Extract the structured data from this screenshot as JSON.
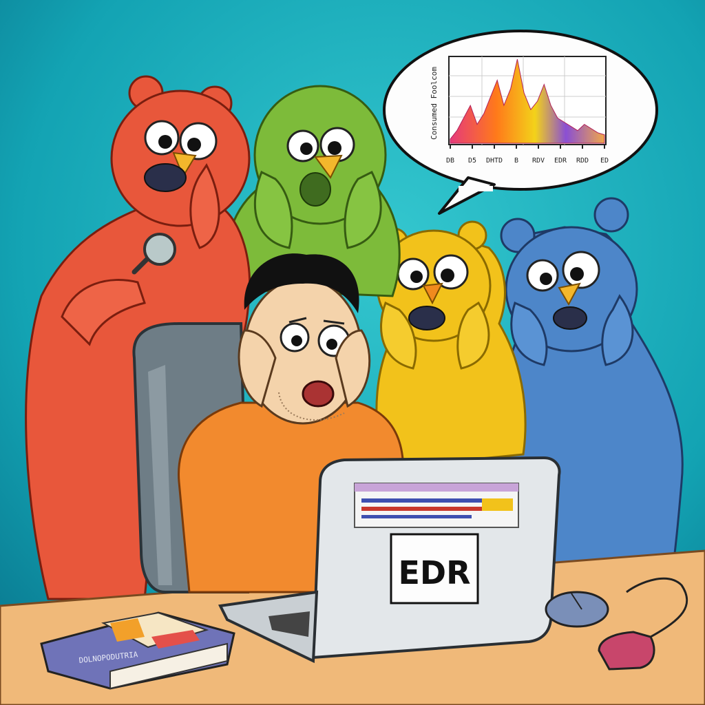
{
  "laptop": {
    "screen_label": "EDR"
  },
  "speech_bubble": {
    "chart_ylabel": "Consumed  Foolcom",
    "chart_ticks": [
      "DB",
      "D5",
      "DHTD",
      "B",
      "RDV",
      "EDR",
      "RDD",
      "ED"
    ]
  },
  "book": {
    "spine_text": "DOLNOPODUTRIA"
  },
  "colors": {
    "background": "#1aa9b8",
    "red_bear": "#e8573b",
    "green_creature": "#7dbb3a",
    "yellow_bear": "#f2c21b",
    "blue_bear": "#4d86c9",
    "shirt": "#f28a2e",
    "desk": "#f0b979"
  },
  "chart_data": {
    "type": "area",
    "series": [
      {
        "values": [
          2,
          6,
          12,
          18,
          9,
          14,
          22,
          30,
          18,
          26,
          40,
          24,
          16,
          20,
          28,
          18,
          12,
          10,
          8,
          6,
          9,
          7,
          5,
          4
        ]
      }
    ]
  }
}
